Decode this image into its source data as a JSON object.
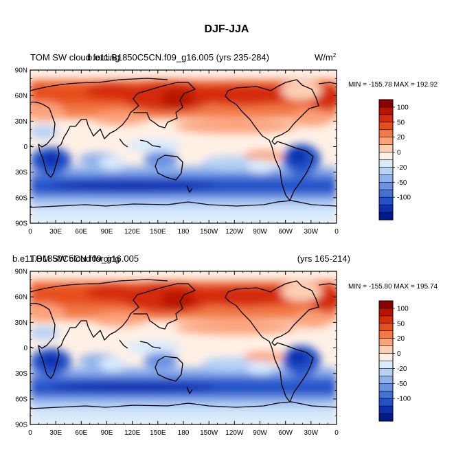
{
  "figure_title": "DJF-JJA",
  "colorbar": {
    "levels": [
      "100",
      "50",
      "20",
      "0",
      "-20",
      "-50",
      "-100"
    ],
    "colors": [
      "#8b0000",
      "#b81400",
      "#d42c0c",
      "#e6501e",
      "#f27a46",
      "#fba27a",
      "#fdd0b4",
      "#fff0e6",
      "#d9ebfc",
      "#b8d2f5",
      "#8fb2ec",
      "#6a91e2",
      "#4570d6",
      "#2452c8",
      "#0c2fb0",
      "#001a8c"
    ]
  },
  "chart_data": [
    {
      "type": "heatmap",
      "map_type": "filled contour (global cylindrical equidistant, 0 to 360 longitude)",
      "left_title": "TOM SW cloud forcing",
      "left_title_overlap": "b.e11.B1850C5CN.f09_g16.005 (yrs 235-284)",
      "units_label": "W/m",
      "units_exponent": "2",
      "stats": "MIN = -155.78  MAX = 192.92",
      "xlabels": [
        "0",
        "30E",
        "60E",
        "90E",
        "120E",
        "150E",
        "180",
        "150W",
        "120W",
        "90W",
        "60W",
        "30W",
        "0"
      ],
      "ylabels": [
        "90N",
        "60N",
        "30N",
        "0",
        "30S",
        "60S",
        "90S"
      ],
      "xlim": [
        0,
        360
      ],
      "ylim": [
        -90,
        90
      ],
      "min": -155.78,
      "max": 192.92
    },
    {
      "type": "heatmap",
      "map_type": "filled contour (global cylindrical equidistant, 0 to 360 longitude)",
      "left_title": "b.e11.B1850C5CN.f09_g16.005",
      "left_title_overlap": "TOM SW cloud forcing",
      "right_title": "(yrs 165-214)",
      "stats": "MIN = -155.80  MAX = 195.74",
      "xlabels": [
        "0",
        "30E",
        "60E",
        "90E",
        "120E",
        "150E",
        "180",
        "150W",
        "120W",
        "90W",
        "60W",
        "30W",
        "0"
      ],
      "ylabels": [
        "90N",
        "60N",
        "30N",
        "0",
        "30S",
        "60S",
        "90S"
      ],
      "xlim": [
        0,
        360
      ],
      "ylim": [
        -90,
        90
      ],
      "min": -155.8,
      "max": 195.74
    }
  ]
}
